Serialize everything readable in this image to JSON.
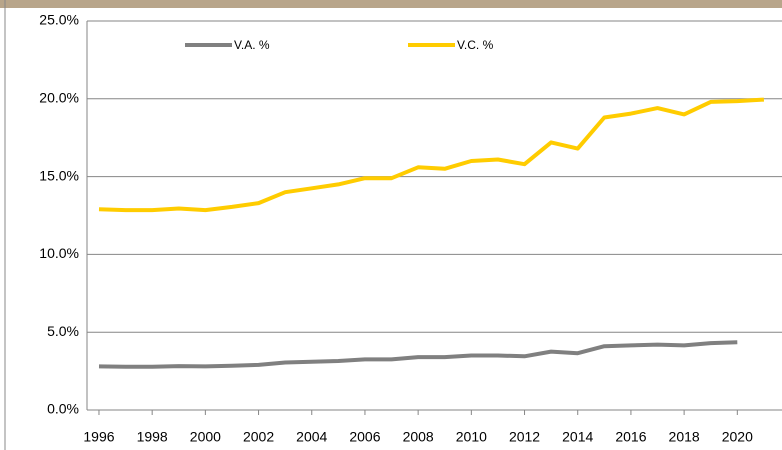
{
  "chart_data": {
    "type": "line",
    "x": [
      1996,
      1997,
      1998,
      1999,
      2000,
      2001,
      2002,
      2003,
      2004,
      2005,
      2006,
      2007,
      2008,
      2009,
      2010,
      2011,
      2012,
      2013,
      2014,
      2015,
      2016,
      2017,
      2018,
      2019,
      2020,
      2021
    ],
    "series": [
      {
        "name": "V.A. %",
        "color": "#808080",
        "values": [
          2.8,
          2.78,
          2.78,
          2.82,
          2.8,
          2.85,
          2.9,
          3.05,
          3.1,
          3.15,
          3.25,
          3.25,
          3.4,
          3.4,
          3.5,
          3.5,
          3.45,
          3.75,
          3.65,
          4.1,
          4.15,
          4.2,
          4.15,
          4.3,
          4.35,
          null
        ]
      },
      {
        "name": "V.C. %",
        "color": "#ffcc00",
        "values": [
          12.9,
          12.85,
          12.85,
          12.95,
          12.85,
          13.05,
          13.3,
          14.0,
          14.25,
          14.5,
          14.9,
          14.9,
          15.6,
          15.5,
          16.0,
          16.1,
          15.8,
          17.2,
          16.8,
          18.8,
          19.05,
          19.4,
          19.0,
          19.8,
          19.85,
          19.95
        ]
      }
    ],
    "xlim": [
      1995.55,
      2021.68
    ],
    "xticks": [
      1996,
      1998,
      2000,
      2002,
      2004,
      2006,
      2008,
      2010,
      2012,
      2014,
      2016,
      2018,
      2020
    ],
    "ylim": [
      0,
      25
    ],
    "yticks": [
      {
        "value": 0,
        "label": "0.0%"
      },
      {
        "value": 5,
        "label": "5.0%"
      },
      {
        "value": 10,
        "label": "10.0%"
      },
      {
        "value": 15,
        "label": "15.0%"
      },
      {
        "value": 20,
        "label": "20.0%"
      },
      {
        "value": 25,
        "label": "25.0%"
      }
    ],
    "grid": true,
    "legend": "top"
  }
}
